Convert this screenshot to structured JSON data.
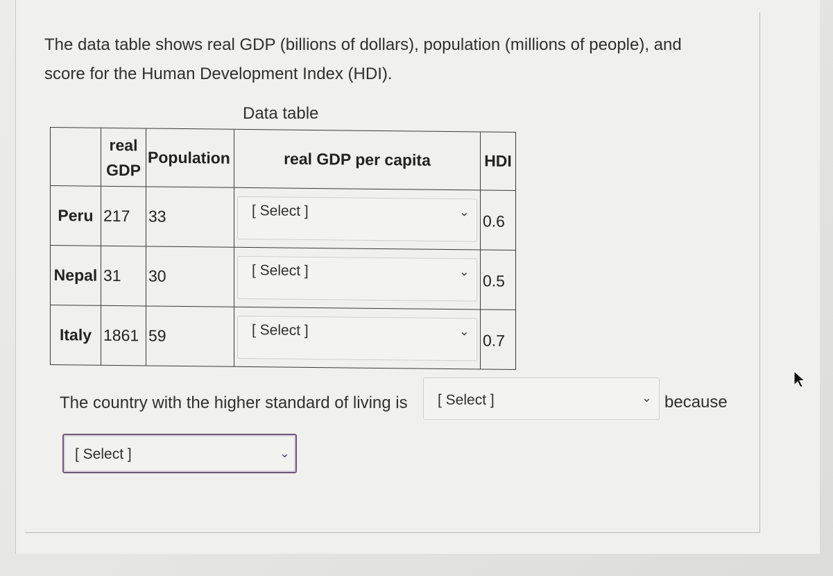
{
  "intro_text": "The data table shows real GDP (billions of dollars), population (millions of people), and score for the Human Development Index (HDI).",
  "table": {
    "title": "Data table",
    "headers": {
      "country": "",
      "gdp": "real GDP",
      "population": "Population",
      "per_capita": "real GDP per capita",
      "hdi": "HDI"
    },
    "rows": [
      {
        "country": "Peru",
        "gdp": "217",
        "population": "33",
        "per_capita_select": "[ Select ]",
        "hdi": "0.6"
      },
      {
        "country": "Nepal",
        "gdp": "31",
        "population": "30",
        "per_capita_select": "[ Select ]",
        "hdi": "0.5"
      },
      {
        "country": "Italy",
        "gdp": "1861",
        "population": "59",
        "per_capita_select": "[ Select ]",
        "hdi": "0.7"
      }
    ]
  },
  "question": {
    "sentence": "The country with the higher standard of living is",
    "country_select": "[ Select ]",
    "because": "because",
    "reason_select": "[ Select ]"
  },
  "icons": {
    "dropdown": "chevron-down-icon",
    "cursor": "mouse-pointer-icon"
  }
}
